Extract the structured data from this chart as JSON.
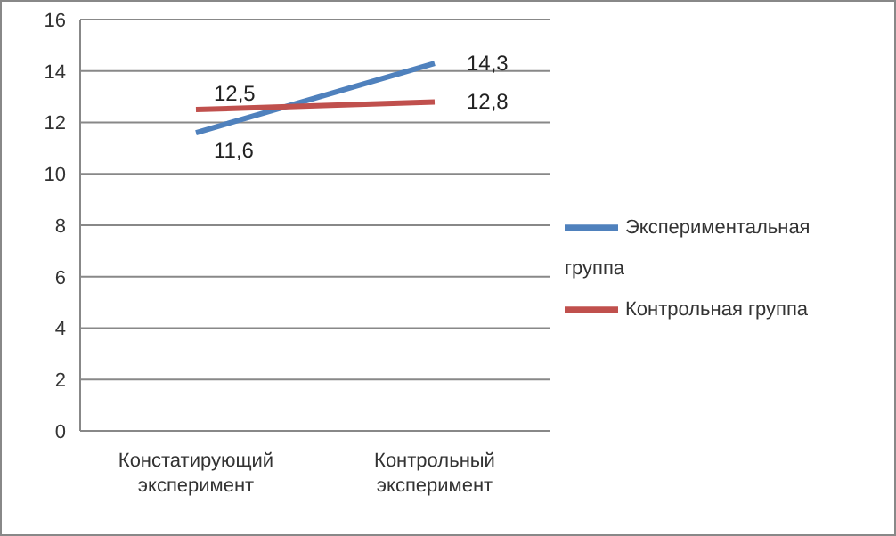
{
  "chart_data": {
    "type": "line",
    "categories": [
      "Констатирующий эксперимент",
      "Контрольный эксперимент"
    ],
    "series": [
      {
        "name": "Экспериментальная группа",
        "color": "#4f81bd",
        "values": [
          11.6,
          14.3
        ],
        "value_labels": [
          "11,6",
          "14,3"
        ]
      },
      {
        "name": "Контрольная группа",
        "color": "#c0504d",
        "values": [
          12.5,
          12.8
        ],
        "value_labels": [
          "12,5",
          "12,8"
        ]
      }
    ],
    "ylim": [
      0,
      16
    ],
    "yticks": [
      0,
      2,
      4,
      6,
      8,
      10,
      12,
      14,
      16
    ],
    "grid": "y",
    "legend": "right",
    "marker": "none",
    "line_style": "solid"
  }
}
